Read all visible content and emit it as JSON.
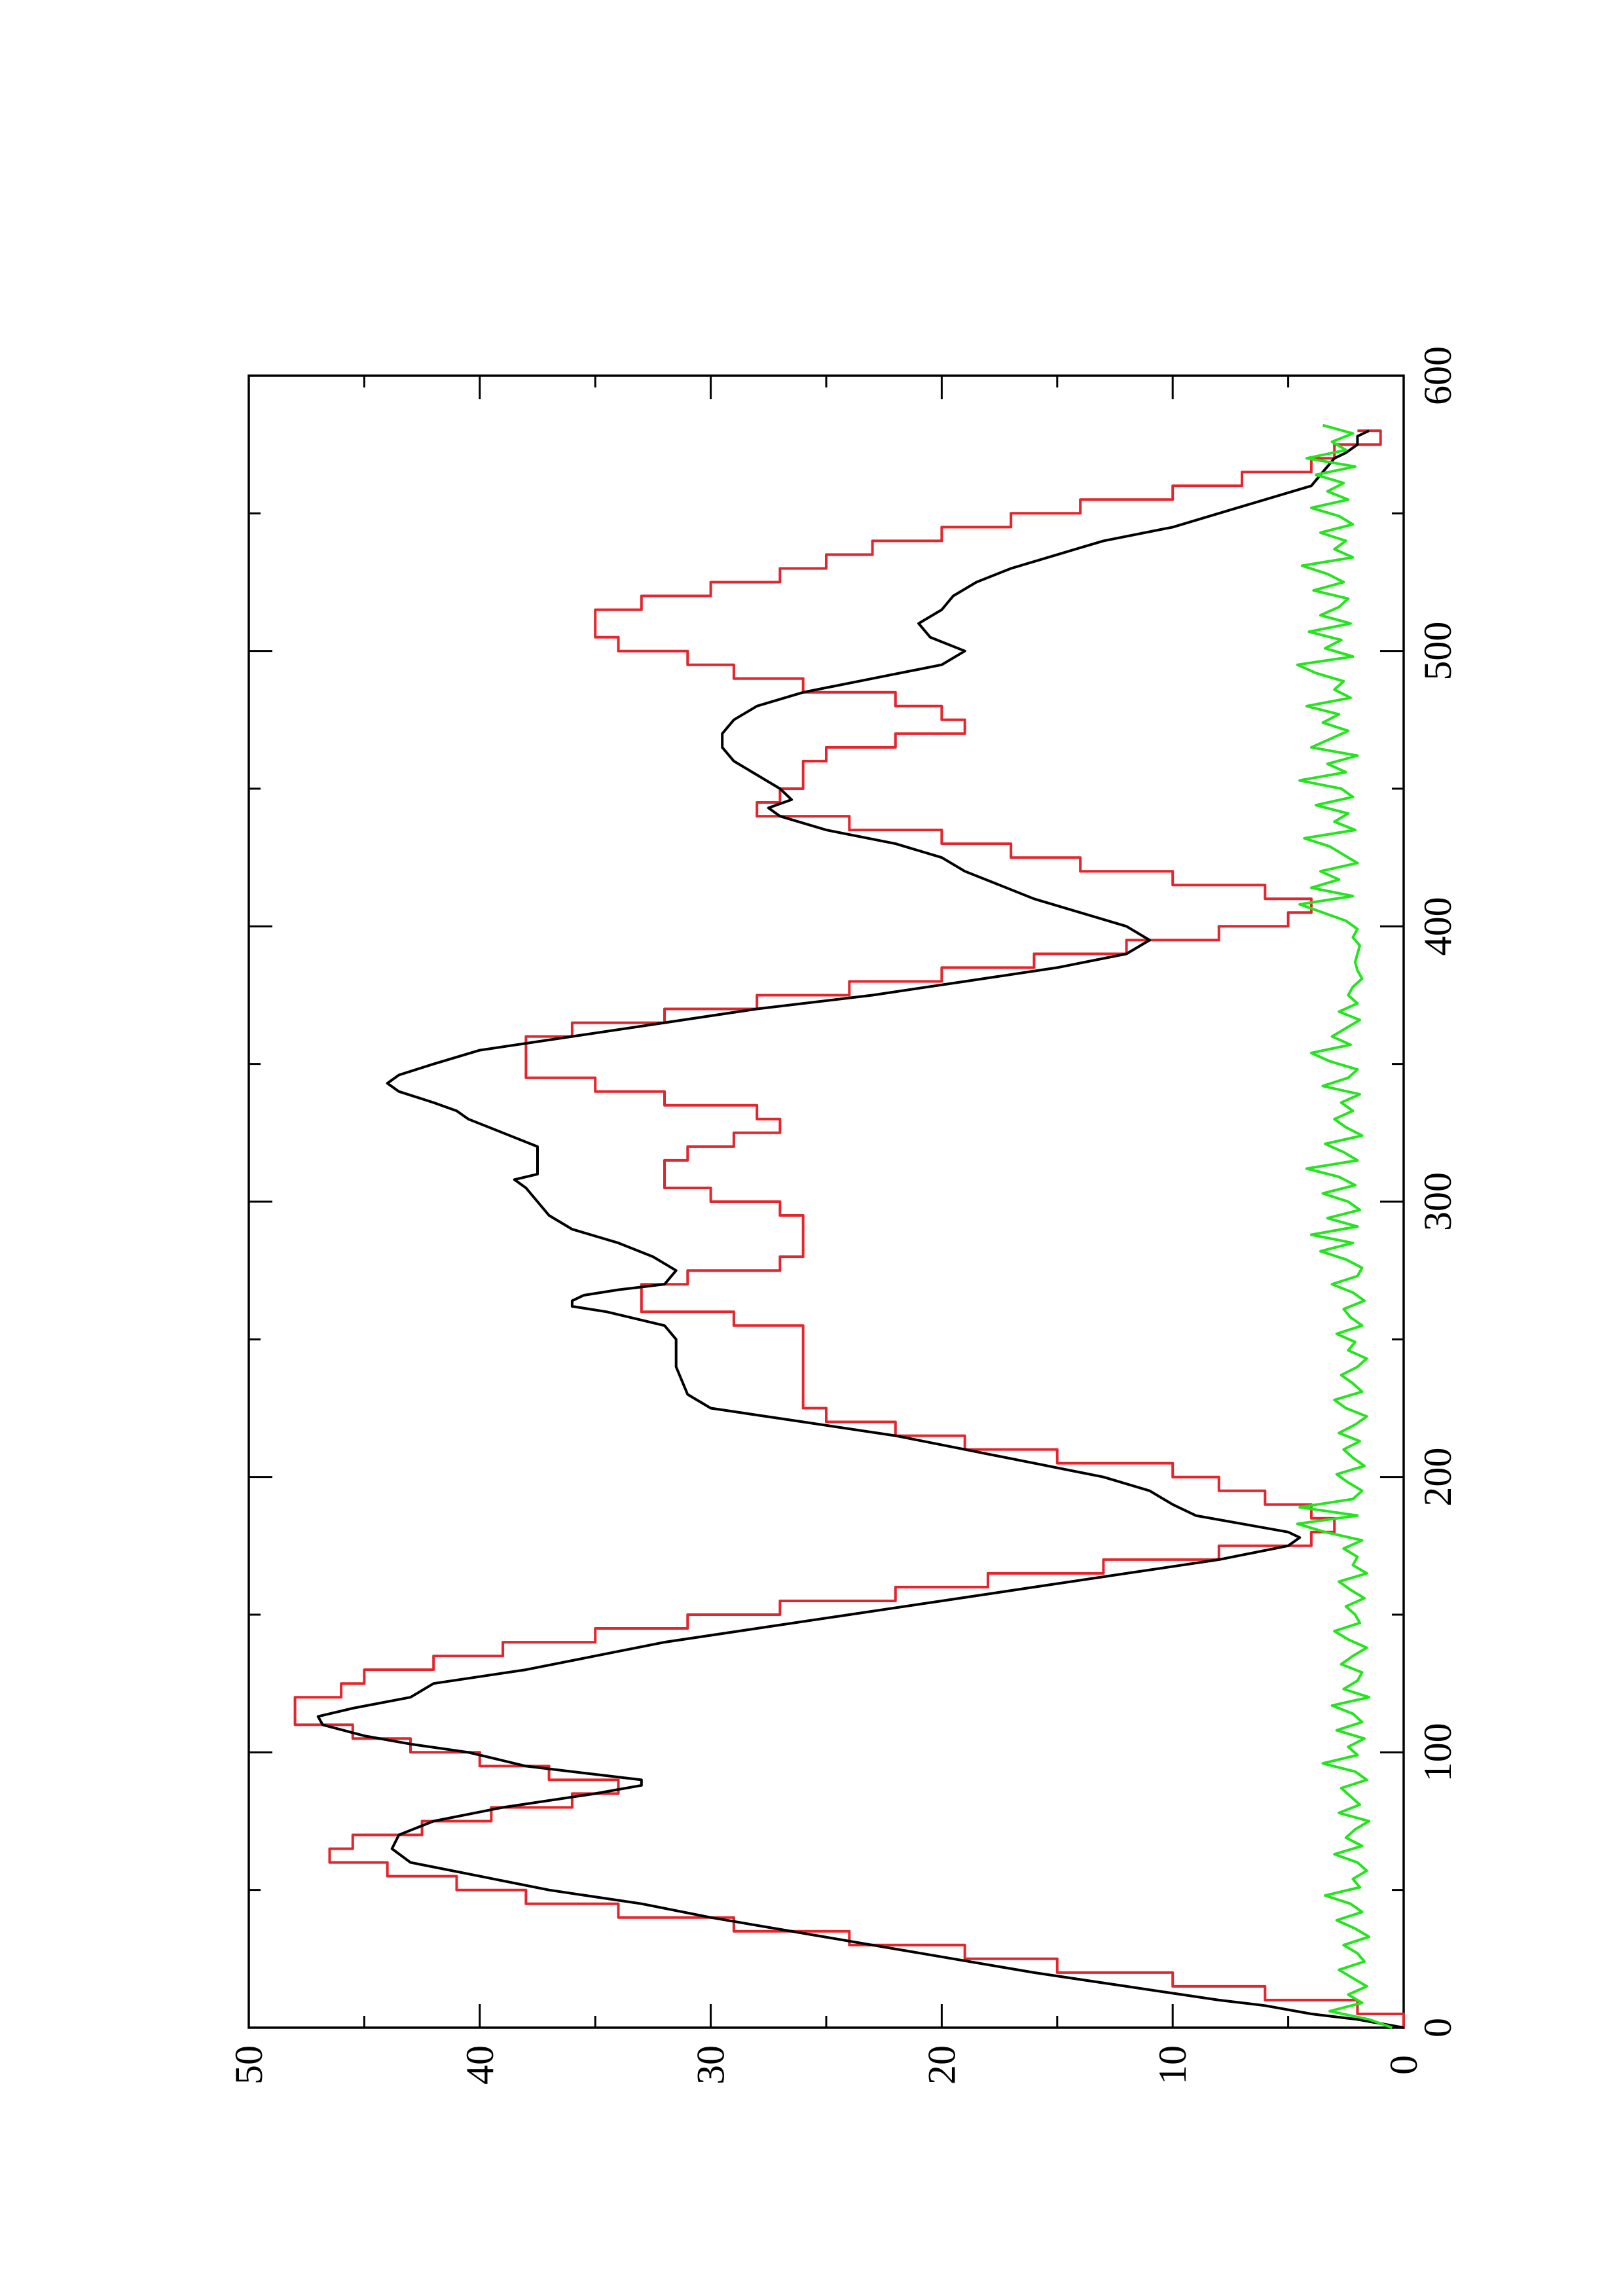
{
  "chart_data": {
    "type": "line",
    "title": "",
    "xlabel": "",
    "ylabel": "",
    "orientation": "rotated 90 degrees counter-clockwise",
    "xlim": [
      0,
      600
    ],
    "ylim": [
      0,
      50
    ],
    "x_ticks": [
      0,
      100,
      200,
      300,
      400,
      500,
      600
    ],
    "y_ticks": [
      0,
      10,
      20,
      30,
      40,
      50
    ],
    "x_tick_labels": [
      "0",
      "100",
      "200",
      "300",
      "400",
      "500",
      "600"
    ],
    "y_tick_labels": [
      "0",
      "10",
      "20",
      "30",
      "40",
      "50"
    ],
    "grid": false,
    "legend": "none",
    "series": [
      {
        "color": "#000000",
        "style": "line",
        "x": [
          0,
          3,
          5,
          8,
          10,
          15,
          20,
          30,
          40,
          45,
          50,
          55,
          60,
          65,
          70,
          75,
          80,
          85,
          88,
          90,
          92,
          95,
          100,
          103,
          106,
          110,
          113,
          116,
          120,
          125,
          130,
          135,
          140,
          145,
          150,
          155,
          160,
          165,
          170,
          175,
          178,
          180,
          183,
          186,
          190,
          195,
          200,
          205,
          210,
          215,
          220,
          225,
          230,
          240,
          250,
          255,
          260,
          262,
          264,
          266,
          268,
          270,
          275,
          280,
          285,
          290,
          295,
          300,
          305,
          308,
          310,
          315,
          320,
          325,
          330,
          333,
          336,
          340,
          343,
          346,
          350,
          355,
          360,
          365,
          370,
          375,
          380,
          385,
          390,
          395,
          400,
          405,
          410,
          415,
          420,
          425,
          430,
          435,
          440,
          443,
          446,
          450,
          455,
          460,
          465,
          470,
          475,
          480,
          485,
          490,
          495,
          500,
          505,
          510,
          515,
          520,
          525,
          530,
          535,
          540,
          545,
          550,
          555,
          560,
          565,
          570,
          572,
          575,
          578,
          580
        ],
        "y": [
          0,
          2,
          4,
          6,
          8,
          12,
          16,
          23,
          30,
          33,
          37,
          40,
          43,
          43.8,
          43.5,
          42,
          39,
          35,
          33,
          33,
          35,
          38,
          40.5,
          43,
          45,
          46.8,
          47,
          45.5,
          43,
          42,
          38,
          35,
          32,
          28,
          24,
          20,
          16,
          12,
          8,
          5,
          4.5,
          5,
          7,
          9,
          10,
          11,
          13,
          16,
          19,
          22,
          26,
          30,
          31,
          31.5,
          31.5,
          32,
          34.5,
          36,
          36,
          35.5,
          34,
          32,
          31.5,
          32.5,
          34,
          36,
          37,
          37.5,
          38,
          38.5,
          37.5,
          37.5,
          37.5,
          39,
          40.5,
          41,
          42,
          43.5,
          44,
          43.5,
          42,
          40,
          36,
          32,
          28,
          23,
          19,
          15,
          12,
          11,
          12,
          14,
          16,
          17.5,
          19,
          20,
          22,
          25,
          27,
          27.5,
          26.5,
          27,
          28,
          29,
          29.5,
          29.5,
          29,
          28,
          26,
          23,
          20,
          19,
          20.5,
          21,
          20,
          19.5,
          18.5,
          17,
          15,
          13,
          10,
          8,
          6,
          4,
          3.5,
          3,
          2.5,
          2,
          2,
          1.5
        ]
      },
      {
        "color": "#e3262d",
        "style": "step",
        "x": [
          0,
          5,
          10,
          15,
          20,
          25,
          30,
          35,
          40,
          45,
          50,
          55,
          60,
          65,
          70,
          75,
          80,
          85,
          90,
          95,
          100,
          105,
          110,
          115,
          120,
          125,
          130,
          135,
          140,
          145,
          150,
          155,
          160,
          165,
          170,
          175,
          180,
          185,
          190,
          195,
          200,
          205,
          210,
          215,
          220,
          225,
          230,
          240,
          250,
          255,
          260,
          265,
          270,
          275,
          280,
          285,
          290,
          295,
          300,
          305,
          310,
          315,
          320,
          325,
          330,
          335,
          340,
          345,
          350,
          355,
          360,
          365,
          370,
          375,
          380,
          385,
          390,
          395,
          400,
          405,
          410,
          415,
          420,
          425,
          430,
          435,
          440,
          445,
          450,
          455,
          460,
          465,
          470,
          475,
          480,
          485,
          490,
          495,
          500,
          505,
          510,
          515,
          520,
          525,
          530,
          535,
          540,
          545,
          550,
          555,
          560,
          565,
          570,
          575,
          580
        ],
        "y": [
          0,
          2,
          6,
          10,
          15,
          19,
          24,
          29,
          34,
          38,
          41,
          44,
          46.5,
          45.5,
          42.5,
          39.5,
          36,
          34,
          37,
          40,
          43,
          45.5,
          48,
          48,
          46,
          45,
          42,
          39,
          35,
          31,
          27,
          22,
          18,
          13,
          8,
          4,
          3,
          4,
          6,
          8,
          10,
          15,
          19,
          22,
          25,
          26,
          26,
          26,
          26,
          29,
          33,
          33,
          31,
          27,
          26,
          26,
          26,
          27,
          30,
          32,
          32,
          31,
          29,
          27,
          28,
          32,
          35,
          38,
          38,
          38,
          36,
          32,
          28,
          24,
          20,
          16,
          12,
          8,
          5,
          4,
          6,
          10,
          14,
          17,
          20,
          24,
          28,
          27,
          26,
          26,
          25,
          22,
          19,
          20,
          22,
          26,
          29,
          31,
          34,
          35,
          35,
          33,
          30,
          27,
          25,
          23,
          20,
          17,
          14,
          10,
          7,
          4,
          3,
          1,
          2
        ]
      },
      {
        "color": "#22e51c",
        "style": "line",
        "x": [
          0,
          3,
          6,
          9,
          12,
          15,
          18,
          21,
          24,
          27,
          30,
          33,
          36,
          39,
          42,
          45,
          48,
          51,
          54,
          57,
          60,
          63,
          66,
          69,
          72,
          75,
          78,
          81,
          84,
          87,
          90,
          93,
          96,
          99,
          102,
          105,
          108,
          111,
          114,
          117,
          120,
          123,
          126,
          129,
          132,
          135,
          138,
          141,
          144,
          147,
          150,
          153,
          156,
          159,
          162,
          165,
          168,
          171,
          174,
          177,
          180,
          183,
          186,
          189,
          192,
          195,
          198,
          201,
          204,
          207,
          210,
          213,
          216,
          219,
          222,
          225,
          228,
          231,
          234,
          237,
          240,
          243,
          246,
          249,
          252,
          255,
          258,
          261,
          264,
          267,
          270,
          273,
          276,
          279,
          282,
          285,
          288,
          291,
          294,
          297,
          300,
          303,
          306,
          309,
          312,
          315,
          318,
          321,
          324,
          327,
          330,
          333,
          336,
          339,
          342,
          345,
          348,
          351,
          354,
          357,
          360,
          363,
          366,
          369,
          372,
          375,
          378,
          381,
          384,
          387,
          390,
          393,
          396,
          399,
          402,
          405,
          408,
          411,
          414,
          417,
          420,
          423,
          426,
          429,
          432,
          435,
          438,
          441,
          444,
          447,
          450,
          453,
          456,
          459,
          462,
          465,
          468,
          471,
          474,
          477,
          480,
          483,
          486,
          489,
          492,
          495,
          498,
          501,
          504,
          507,
          510,
          513,
          516,
          519,
          522,
          525,
          528,
          531,
          534,
          537,
          540,
          543,
          546,
          549,
          552,
          555,
          558,
          561,
          564,
          567,
          570,
          573,
          576,
          579,
          582
        ],
        "y": [
          0.5,
          1.5,
          3.2,
          1.8,
          2.4,
          1.6,
          2.2,
          2.8,
          1.7,
          2.0,
          2.6,
          1.5,
          2.1,
          2.9,
          1.8,
          2.3,
          3.4,
          1.9,
          2.2,
          1.6,
          2.0,
          3.0,
          1.8,
          2.5,
          2.1,
          1.5,
          2.8,
          1.9,
          2.3,
          2.7,
          1.6,
          2.1,
          3.5,
          2.0,
          2.4,
          1.7,
          2.9,
          1.8,
          2.2,
          3.1,
          1.5,
          2.6,
          2.0,
          1.8,
          2.7,
          2.2,
          1.6,
          2.4,
          3.0,
          1.9,
          2.1,
          2.5,
          1.7,
          2.3,
          2.8,
          1.6,
          2.2,
          2.0,
          2.6,
          1.8,
          3.4,
          4.6,
          2.0,
          4.5,
          2.2,
          1.8,
          2.4,
          2.9,
          1.7,
          2.2,
          2.6,
          1.9,
          2.8,
          2.1,
          1.6,
          2.5,
          3.0,
          1.8,
          2.2,
          2.7,
          2.0,
          1.6,
          2.4,
          2.1,
          2.9,
          1.8,
          2.3,
          2.6,
          1.7,
          2.2,
          3.1,
          2.0,
          1.8,
          2.5,
          3.6,
          2.2,
          4.0,
          2.0,
          3.3,
          1.9,
          2.4,
          3.5,
          2.1,
          2.8,
          4.2,
          2.0,
          2.6,
          3.4,
          1.8,
          2.5,
          3.0,
          2.2,
          2.7,
          1.9,
          3.5,
          2.4,
          2.0,
          3.2,
          4.0,
          2.3,
          3.1,
          2.5,
          1.9,
          2.8,
          2.0,
          2.4,
          2.2,
          1.8,
          2.0,
          2.1,
          2.0,
          1.9,
          2.2,
          2.0,
          2.5,
          3.5,
          4.5,
          2.2,
          4.0,
          2.8,
          3.6,
          2.0,
          2.6,
          3.2,
          4.3,
          2.1,
          3.0,
          2.4,
          3.8,
          2.2,
          2.7,
          4.5,
          2.5,
          3.3,
          2.0,
          4.0,
          3.2,
          2.4,
          3.5,
          2.8,
          4.2,
          2.3,
          3.0,
          2.6,
          3.8,
          4.6,
          2.2,
          3.4,
          2.7,
          4.1,
          2.3,
          3.6,
          2.8,
          2.4,
          3.9,
          2.6,
          3.3,
          4.4,
          2.2,
          3.0,
          2.5,
          3.6,
          2.2,
          2.8,
          4.0,
          2.4,
          3.3,
          2.6,
          3.8,
          2.1,
          4.2,
          2.5,
          3.1,
          2.2,
          3.5
        ]
      }
    ]
  }
}
